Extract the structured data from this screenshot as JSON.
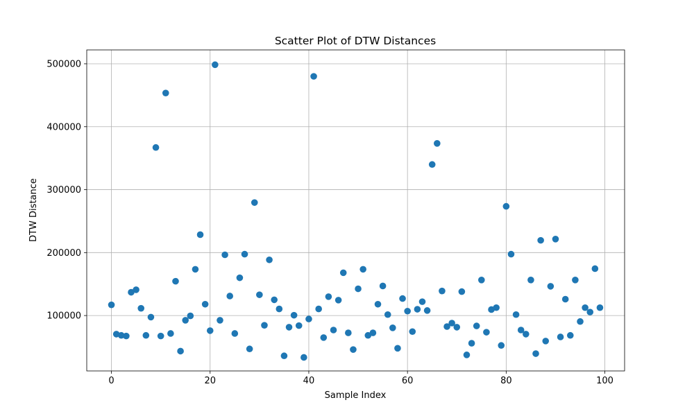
{
  "chart_data": {
    "type": "scatter",
    "title": "Scatter Plot of DTW Distances",
    "xlabel": "Sample Index",
    "ylabel": "DTW Distance",
    "xlim": [
      -5,
      104
    ],
    "ylim": [
      12000,
      522000
    ],
    "xticks": [
      0,
      20,
      40,
      60,
      80,
      100
    ],
    "xtick_labels": [
      "0",
      "20",
      "40",
      "60",
      "80",
      "100"
    ],
    "yticks": [
      100000,
      200000,
      300000,
      400000,
      500000
    ],
    "ytick_labels": [
      "100000",
      "200000",
      "300000",
      "400000",
      "500000"
    ],
    "grid": true,
    "marker_color": "#1f77b4",
    "x": [
      0,
      1,
      2,
      3,
      4,
      5,
      6,
      7,
      8,
      9,
      10,
      11,
      12,
      13,
      14,
      15,
      16,
      17,
      18,
      19,
      20,
      21,
      22,
      23,
      24,
      25,
      26,
      27,
      28,
      29,
      30,
      31,
      32,
      33,
      34,
      35,
      36,
      37,
      38,
      39,
      40,
      41,
      42,
      43,
      44,
      45,
      46,
      47,
      48,
      49,
      50,
      51,
      52,
      53,
      54,
      55,
      56,
      57,
      58,
      59,
      60,
      61,
      62,
      63,
      64,
      65,
      66,
      67,
      68,
      69,
      70,
      71,
      72,
      73,
      74,
      75,
      76,
      77,
      78,
      79,
      80,
      81,
      82,
      83,
      84,
      85,
      86,
      87,
      88,
      89,
      90,
      91,
      92,
      93,
      94,
      95,
      96,
      97,
      98,
      99
    ],
    "y": [
      117000,
      70500,
      68500,
      67500,
      137000,
      141000,
      111500,
      68500,
      97500,
      367000,
      67500,
      453500,
      71500,
      154500,
      43500,
      92500,
      99500,
      173500,
      228500,
      118000,
      76000,
      498500,
      92500,
      196500,
      131000,
      71500,
      160000,
      197500,
      47000,
      279500,
      133000,
      84500,
      188500,
      125000,
      110500,
      36000,
      81500,
      100500,
      84000,
      33500,
      94500,
      480000,
      110500,
      65000,
      130000,
      77000,
      124500,
      168000,
      72500,
      46000,
      142500,
      173500,
      68500,
      72500,
      118000,
      147000,
      101500,
      80500,
      48000,
      127000,
      107000,
      74500,
      110000,
      122000,
      108000,
      340000,
      373500,
      139000,
      82500,
      88000,
      81500,
      138000,
      37500,
      56000,
      83500,
      156500,
      73500,
      109500,
      112500,
      52500,
      273500,
      197500,
      101500,
      77000,
      70500,
      156500,
      39500,
      219500,
      59500,
      146500,
      221500,
      66000,
      126000,
      68500,
      156500,
      90500,
      112500,
      105500,
      174500,
      112500
    ]
  }
}
